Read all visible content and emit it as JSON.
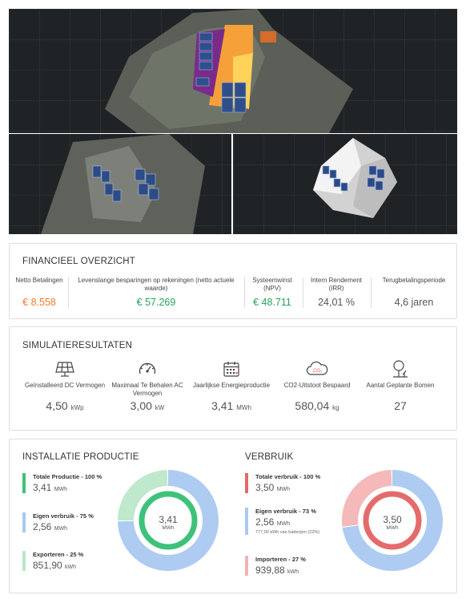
{
  "financial": {
    "title": "FINANCIEEL OVERZICHT",
    "cols": [
      {
        "label": "Netto Betalingen",
        "value": "€ 8.558",
        "color": "#f07a2b"
      },
      {
        "label": "Levenslange besparingen op rekeningen (netto actuele waarde)",
        "value": "€ 57.269",
        "color": "#24a35a"
      },
      {
        "label": "Systeemwinst (NPV)",
        "value": "€ 48.711",
        "color": "#24a35a"
      },
      {
        "label": "Intern Rendement (IRR)",
        "value": "24,01 %",
        "color": "#555555"
      },
      {
        "label": "Terugbetalingsperiode",
        "value": "4,6 jaren",
        "color": "#555555"
      }
    ]
  },
  "simulation": {
    "title": "SIMULATIERESULTATEN",
    "cols": [
      {
        "icon": "solar-panel-icon",
        "label": "Geïnstalleerd DC Vermogen",
        "value": "4,50",
        "unit": "kWp"
      },
      {
        "icon": "speedometer-icon",
        "label": "Maximaal Te Behalen AC Vermogen",
        "value": "3,00",
        "unit": "kW"
      },
      {
        "icon": "calendar-icon",
        "label": "Jaarlijkse Energieproductie",
        "value": "3,41",
        "unit": "MWh"
      },
      {
        "icon": "co2-cloud-icon",
        "label": "CO2-Uitstoot Bespaard",
        "value": "580,04",
        "unit": "kg"
      },
      {
        "icon": "tree-icon",
        "label": "Aantal Geplante Bomen",
        "value": "27",
        "unit": ""
      }
    ]
  },
  "production": {
    "title": "INSTALLATIE PRODUCTIE",
    "items": [
      {
        "label": "Totale Productie - 100 %",
        "value": "3,41",
        "unit": "MWh",
        "color": "#3ec27a"
      },
      {
        "label": "Eigen verbruik - 75 %",
        "value": "2,56",
        "unit": "MWh",
        "color": "#a9c9f0"
      },
      {
        "label": "Exporteren - 25 %",
        "value": "851,90",
        "unit": "kWh",
        "color": "#b7e6c8"
      }
    ],
    "center_value": "3,41",
    "center_unit": "MWh",
    "shares": [
      75,
      25
    ],
    "colors": {
      "ring": "#3ec27a",
      "main": "#aecbf2",
      "secondary": "#bfe8cd"
    }
  },
  "consumption": {
    "title": "VERBRUIK",
    "items": [
      {
        "label": "Totale verbruik - 100 %",
        "value": "3,50",
        "unit": "MWh",
        "color": "#e26a6a",
        "note": ""
      },
      {
        "label": "Eigen verbruik - 73 %",
        "value": "2,56",
        "unit": "MWh",
        "color": "#a9c9f0",
        "note": "777,00 kWh van batterijen (22%)"
      },
      {
        "label": "Importeren - 27 %",
        "value": "939,88",
        "unit": "kWh",
        "color": "#f2b3b3"
      }
    ],
    "center_value": "3,50",
    "center_unit": "MWh",
    "shares": [
      73,
      27
    ],
    "colors": {
      "ring": "#e46b6b",
      "main": "#aecbf2",
      "secondary": "#f5b9b9"
    }
  }
}
